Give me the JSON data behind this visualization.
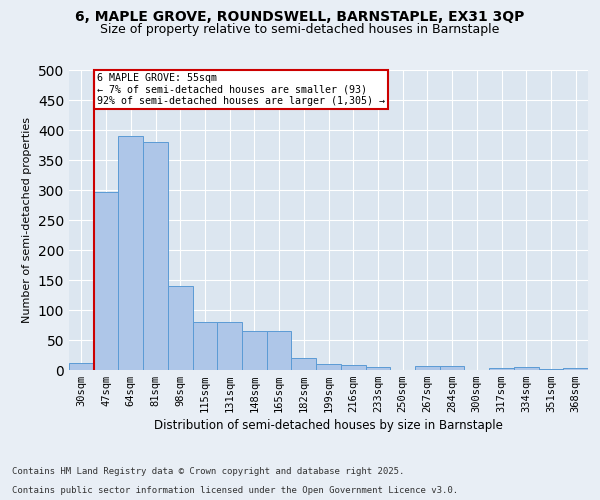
{
  "title1": "6, MAPLE GROVE, ROUNDSWELL, BARNSTAPLE, EX31 3QP",
  "title2": "Size of property relative to semi-detached houses in Barnstaple",
  "xlabel": "Distribution of semi-detached houses by size in Barnstaple",
  "ylabel": "Number of semi-detached properties",
  "categories": [
    "30sqm",
    "47sqm",
    "64sqm",
    "81sqm",
    "98sqm",
    "115sqm",
    "131sqm",
    "148sqm",
    "165sqm",
    "182sqm",
    "199sqm",
    "216sqm",
    "233sqm",
    "250sqm",
    "267sqm",
    "284sqm",
    "300sqm",
    "317sqm",
    "334sqm",
    "351sqm",
    "368sqm"
  ],
  "values": [
    12,
    296,
    390,
    380,
    140,
    80,
    80,
    65,
    65,
    20,
    10,
    9,
    5,
    0,
    6,
    6,
    0,
    3,
    5,
    2,
    3
  ],
  "bar_color": "#aec6e8",
  "bar_edge_color": "#5b9bd5",
  "vline_color": "#cc0000",
  "vline_x_index": 1,
  "annotation_text": "6 MAPLE GROVE: 55sqm\n← 7% of semi-detached houses are smaller (93)\n92% of semi-detached houses are larger (1,305) →",
  "ylim": [
    0,
    500
  ],
  "yticks": [
    0,
    50,
    100,
    150,
    200,
    250,
    300,
    350,
    400,
    450,
    500
  ],
  "footer1": "Contains HM Land Registry data © Crown copyright and database right 2025.",
  "footer2": "Contains public sector information licensed under the Open Government Licence v3.0.",
  "bg_color": "#e8eef5",
  "plot_bg_color": "#dce6f0",
  "title1_fontsize": 10,
  "title2_fontsize": 9,
  "xlabel_fontsize": 8.5,
  "ylabel_fontsize": 8,
  "tick_fontsize": 7.5,
  "footer_fontsize": 6.5
}
